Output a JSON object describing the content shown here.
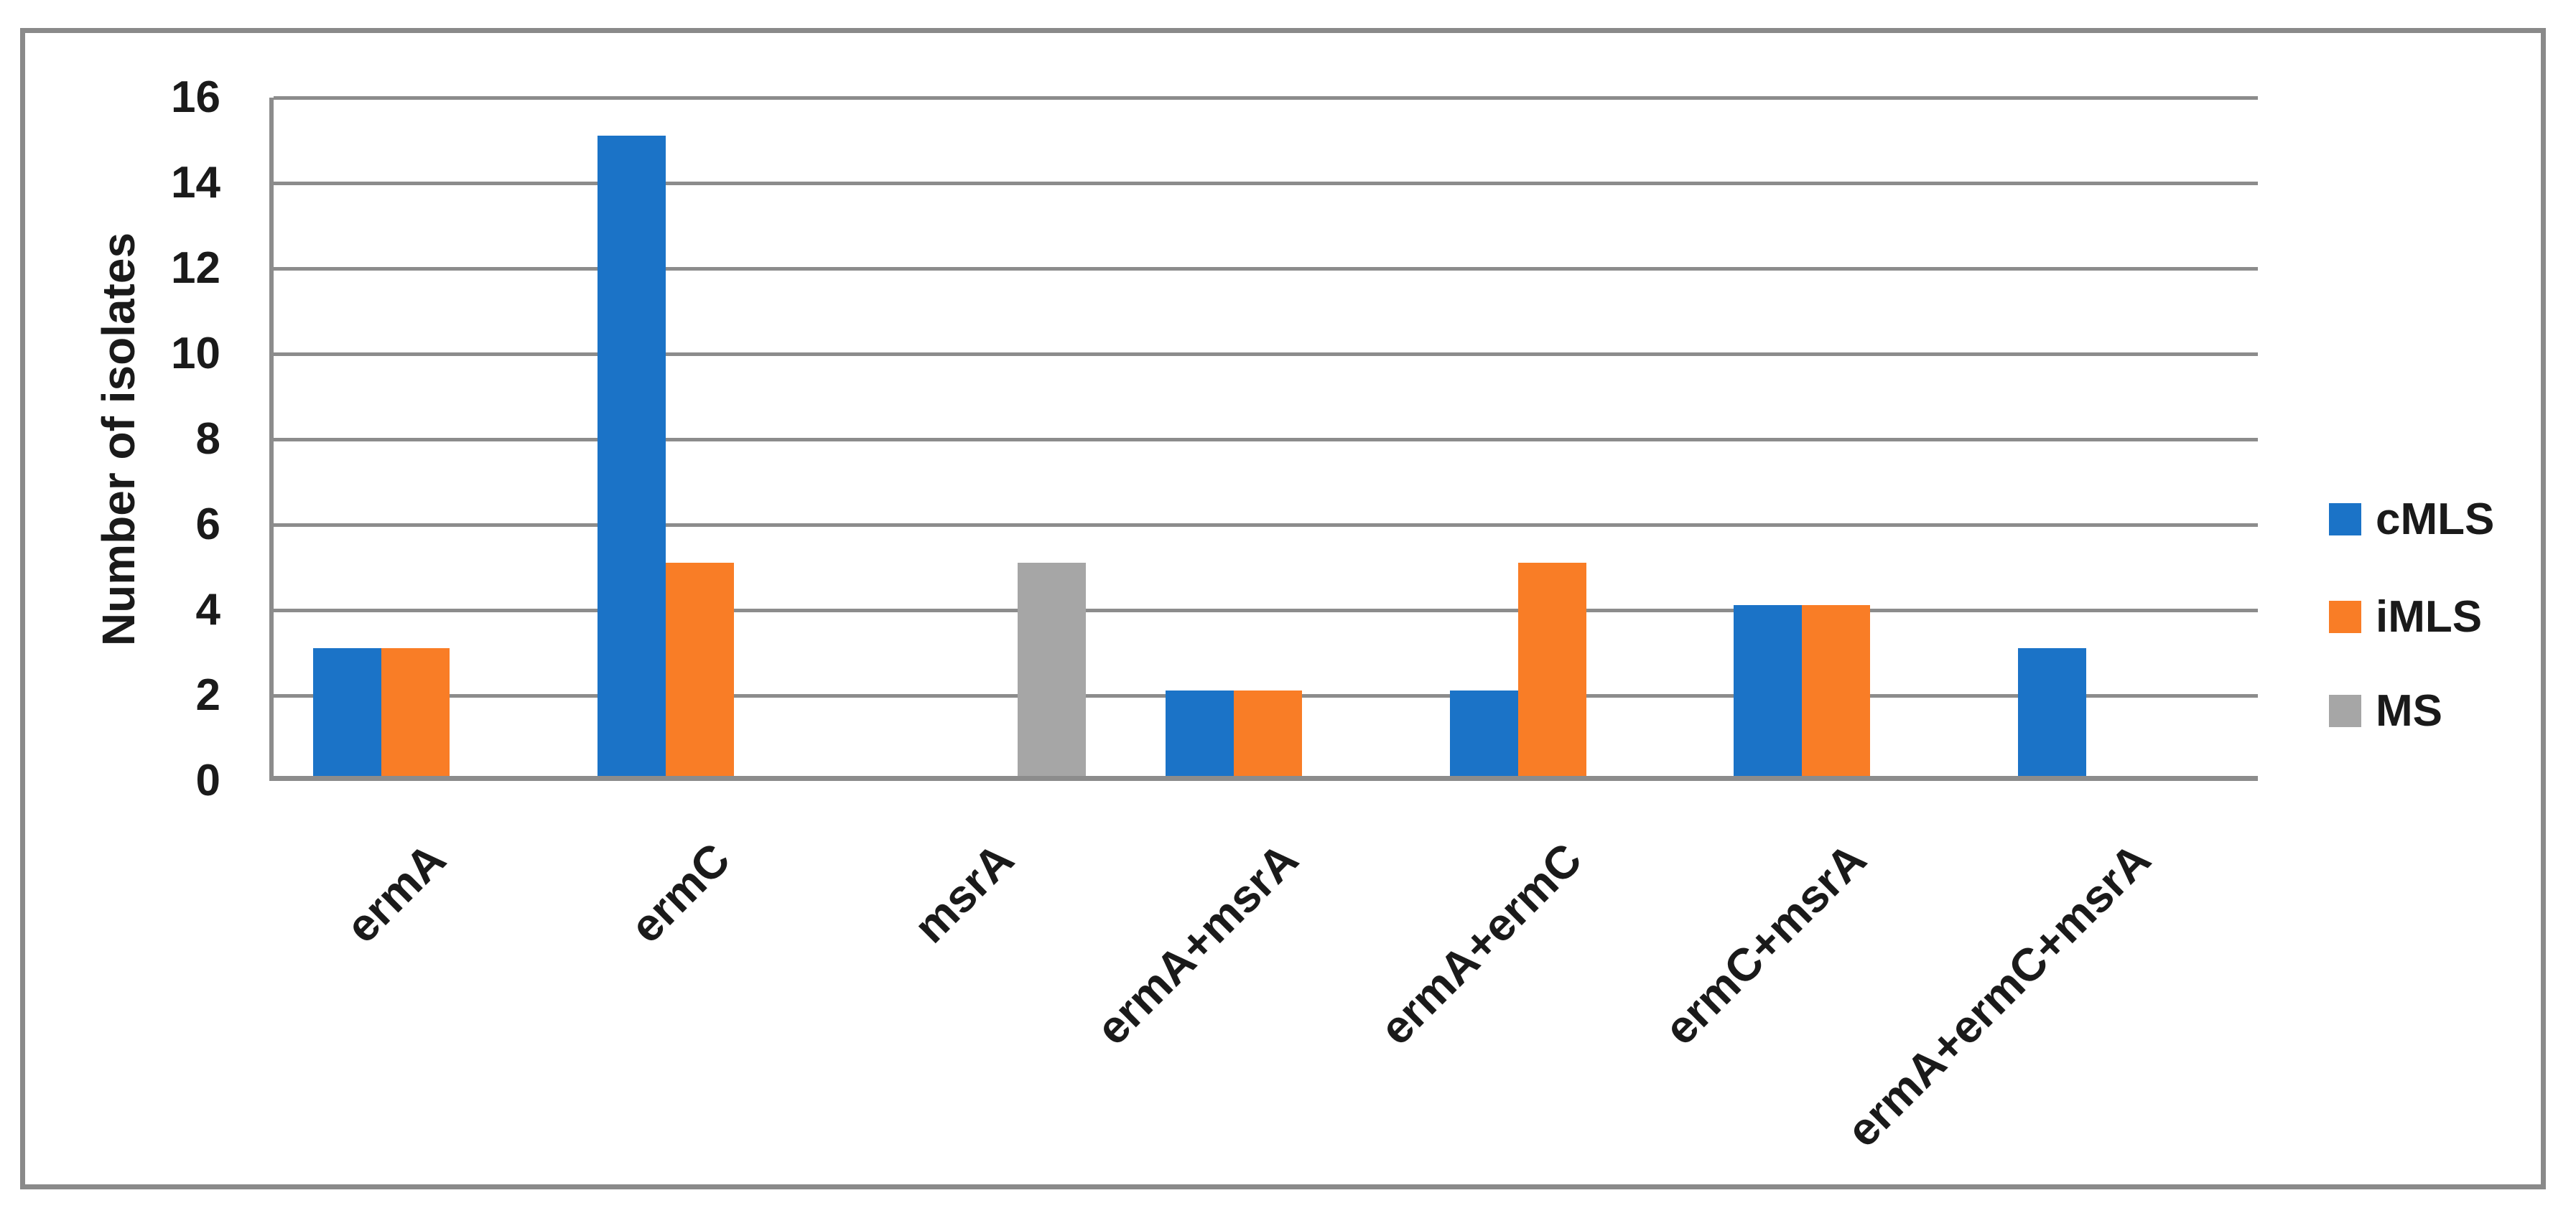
{
  "figure": {
    "background_color": "#ffffff",
    "frame_color": "#8a8a8a",
    "gridline_color": "#8c8c8c",
    "axis_line_color": "#8c8c8c",
    "text_color": "#1a1a1a"
  },
  "chart_data": {
    "type": "bar",
    "title": "",
    "xlabel": "",
    "ylabel": "Number of isolates",
    "categories": [
      "ermA",
      "ermC",
      "msrA",
      "ermA+msrA",
      "ermA+ermC",
      "ermC+msrA",
      "ermA+ermC+msrA"
    ],
    "series": [
      {
        "name": "cMLS",
        "color": "#1b73c7",
        "values": [
          3,
          15,
          0,
          2,
          2,
          4,
          3
        ]
      },
      {
        "name": "iMLS",
        "color": "#f97d26",
        "values": [
          3,
          5,
          0,
          2,
          5,
          4,
          0
        ]
      },
      {
        "name": "MS",
        "color": "#a6a6a6",
        "values": [
          0,
          0,
          5,
          0,
          0,
          0,
          0
        ]
      }
    ],
    "ylim": [
      0,
      16
    ],
    "y_ticks": [
      0,
      2,
      4,
      6,
      8,
      10,
      12,
      14,
      16
    ],
    "grid": true,
    "legend_position": "right",
    "x_tick_rotation_deg": -45
  }
}
